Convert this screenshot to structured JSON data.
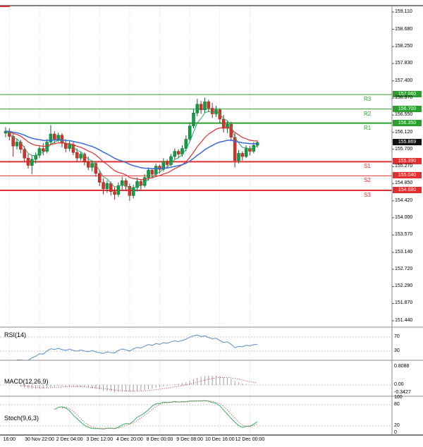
{
  "chart_data": {
    "type": "candlestick",
    "x_axis": {
      "labels": [
        "16:00",
        "30 Nov 22:00",
        "2 Dec 04:00",
        "3 Dec 12:00",
        "4 Dec 20:00",
        "8 Dec 00:00",
        "9 Dec 08:00",
        "10 Dec 16:00",
        "12 Dec 00:00"
      ],
      "grid_indices": [
        1,
        9,
        17,
        25,
        33,
        41,
        49,
        57,
        65
      ]
    },
    "y_axis": {
      "ticks": [
        "159.110",
        "158.680",
        "158.250",
        "157.830",
        "157.400",
        "156.970",
        "156.550",
        "156.120",
        "155.700",
        "155.270",
        "154.850",
        "154.420",
        "154.000",
        "153.570",
        "153.140",
        "152.720",
        "152.290",
        "151.870",
        "151.440"
      ]
    },
    "current_price": {
      "label": "155.869",
      "value": 155.869
    },
    "levels": {
      "resistance": [
        {
          "label": "R3",
          "price": "157.060",
          "width": 1
        },
        {
          "label": "R2",
          "price": "156.700",
          "width": 1
        },
        {
          "label": "R1",
          "price": "156.350",
          "width": 2
        }
      ],
      "support": [
        {
          "label": "S1",
          "price": "155.390",
          "width": 2
        },
        {
          "label": "S2",
          "price": "155.040",
          "width": 1
        },
        {
          "label": "S3",
          "price": "154.680",
          "width": 2
        }
      ]
    },
    "candles": [
      [
        156.1,
        156.25,
        156.0,
        156.15
      ],
      [
        156.15,
        156.22,
        155.92,
        156.02
      ],
      [
        156.02,
        156.08,
        155.52,
        155.78
      ],
      [
        155.78,
        155.96,
        155.7,
        155.88
      ],
      [
        155.88,
        155.93,
        155.6,
        155.7
      ],
      [
        155.7,
        155.78,
        155.38,
        155.48
      ],
      [
        155.48,
        155.58,
        155.22,
        155.3
      ],
      [
        155.3,
        155.55,
        155.08,
        155.45
      ],
      [
        155.45,
        155.62,
        155.35,
        155.55
      ],
      [
        155.55,
        155.8,
        155.48,
        155.72
      ],
      [
        155.72,
        155.85,
        155.55,
        155.65
      ],
      [
        155.65,
        155.95,
        155.6,
        155.88
      ],
      [
        155.88,
        156.3,
        155.8,
        156.08
      ],
      [
        156.08,
        156.15,
        155.85,
        155.95
      ],
      [
        155.95,
        156.12,
        155.88,
        156.05
      ],
      [
        156.05,
        156.1,
        155.75,
        155.85
      ],
      [
        155.85,
        155.95,
        155.62,
        155.72
      ],
      [
        155.72,
        155.9,
        155.65,
        155.82
      ],
      [
        155.82,
        155.88,
        155.55,
        155.62
      ],
      [
        155.62,
        155.72,
        155.4,
        155.48
      ],
      [
        155.48,
        155.65,
        155.42,
        155.58
      ],
      [
        155.58,
        155.62,
        155.3,
        155.38
      ],
      [
        155.38,
        155.52,
        155.18,
        155.25
      ],
      [
        155.25,
        155.42,
        155.15,
        155.35
      ],
      [
        155.35,
        155.38,
        155.02,
        155.1
      ],
      [
        155.1,
        155.18,
        154.78,
        154.88
      ],
      [
        154.88,
        154.98,
        154.58,
        154.72
      ],
      [
        154.72,
        154.92,
        154.62,
        154.85
      ],
      [
        154.85,
        154.9,
        154.55,
        154.65
      ],
      [
        154.65,
        154.78,
        154.45,
        154.58
      ],
      [
        154.58,
        154.88,
        154.52,
        154.8
      ],
      [
        154.8,
        155.02,
        154.7,
        154.92
      ],
      [
        154.92,
        154.98,
        154.68,
        154.78
      ],
      [
        154.78,
        154.85,
        154.42,
        154.55
      ],
      [
        154.55,
        154.82,
        154.48,
        154.75
      ],
      [
        154.75,
        155.0,
        154.65,
        154.9
      ],
      [
        154.9,
        154.95,
        154.7,
        154.8
      ],
      [
        154.8,
        155.08,
        154.75,
        155.0
      ],
      [
        155.0,
        155.25,
        154.92,
        155.18
      ],
      [
        155.18,
        155.22,
        154.98,
        155.08
      ],
      [
        155.08,
        155.35,
        155.02,
        155.28
      ],
      [
        155.28,
        155.32,
        155.1,
        155.2
      ],
      [
        155.2,
        155.48,
        155.15,
        155.4
      ],
      [
        155.4,
        155.45,
        155.22,
        155.32
      ],
      [
        155.32,
        155.58,
        155.28,
        155.52
      ],
      [
        155.52,
        155.72,
        155.45,
        155.65
      ],
      [
        155.65,
        155.7,
        155.48,
        155.58
      ],
      [
        155.58,
        155.8,
        155.52,
        155.72
      ],
      [
        155.72,
        156.05,
        155.65,
        155.95
      ],
      [
        155.95,
        156.35,
        155.9,
        156.28
      ],
      [
        156.28,
        156.7,
        156.22,
        156.6
      ],
      [
        156.6,
        156.95,
        156.52,
        156.82
      ],
      [
        156.82,
        156.9,
        156.58,
        156.68
      ],
      [
        156.68,
        156.98,
        156.6,
        156.88
      ],
      [
        156.88,
        156.93,
        156.62,
        156.72
      ],
      [
        156.72,
        156.85,
        156.48,
        156.58
      ],
      [
        156.58,
        156.78,
        156.5,
        156.68
      ],
      [
        156.68,
        156.72,
        156.35,
        156.45
      ],
      [
        156.45,
        156.55,
        156.12,
        156.22
      ],
      [
        156.22,
        156.4,
        156.1,
        156.32
      ],
      [
        156.32,
        156.38,
        155.9,
        156.0
      ],
      [
        156.0,
        156.1,
        155.25,
        155.42
      ],
      [
        155.42,
        155.68,
        155.35,
        155.6
      ],
      [
        155.6,
        155.65,
        155.42,
        155.52
      ],
      [
        155.52,
        155.8,
        155.48,
        155.72
      ],
      [
        155.72,
        155.78,
        155.55,
        155.65
      ],
      [
        155.65,
        155.88,
        155.6,
        155.8
      ],
      [
        155.8,
        155.92,
        155.74,
        155.869
      ]
    ],
    "moving_averages": [
      {
        "name": "ma-fast",
        "period": 5,
        "color": "#2fa463",
        "width": 1
      },
      {
        "name": "ma-mid",
        "period": 16,
        "color": "#e03030",
        "width": 1.2
      },
      {
        "name": "ma-slow",
        "period": 34,
        "color": "#3a6bd6",
        "width": 1.5
      }
    ],
    "panels": {
      "rsi": {
        "label": "RSI(14)",
        "ticks": [
          "70",
          "30"
        ],
        "color": "#5b8fc9"
      },
      "macd": {
        "label": "MACD(12,26,9)",
        "ticks": [
          "0.8088",
          "0.00",
          "-0.3427"
        ],
        "hist_color": "#a0a0a0",
        "signal_color": "#c0392b"
      },
      "stoch": {
        "label": "Stoch(9,6,3)",
        "ticks": [
          "100",
          "80",
          "20",
          "0"
        ],
        "k_color": "#35b06a",
        "d_color": "#c0392b"
      }
    },
    "colors": {
      "bull": "#0f9d45",
      "bull_dark": "#0a6b30",
      "bear": "#d0342c",
      "bear_dark": "#96271f",
      "resistance": "#2ca02c",
      "support": "#e23030",
      "current": "#111111",
      "grid": "#dcdcdc",
      "panel_level": "#c8c8c8",
      "separator": "#8a8a8a",
      "frame": "#000000",
      "corner_mark": "#e03030"
    }
  }
}
